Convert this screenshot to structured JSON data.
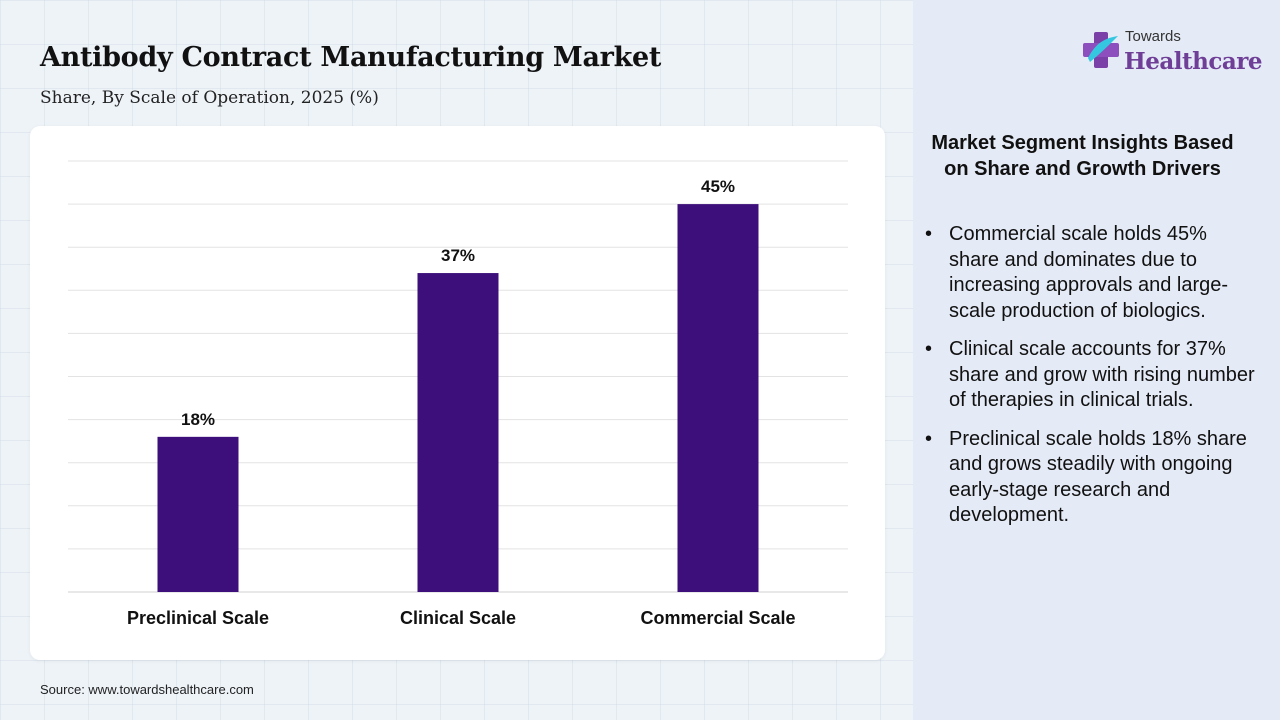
{
  "header": {
    "title": "Antibody Contract Manufacturing Market",
    "subtitle": "Share, By Scale of Operation, 2025 (%)"
  },
  "logo": {
    "top_text": "Towards",
    "main_text": "Healthcare"
  },
  "insights": {
    "title": "Market Segment Insights Based on Share and Growth Drivers",
    "items": [
      "Commercial scale holds 45% share and dominates due to increasing approvals and large-scale production of biologics.",
      "Clinical scale accounts for 37% share and grow with rising number of therapies in clinical trials.",
      "Preclinical scale holds 18% share and grows steadily with ongoing early-stage research and development."
    ]
  },
  "source": "Source: www.towardshealthcare.com",
  "colors": {
    "bar": "#3d0f7a",
    "logo_accent": "#6f3f98",
    "panel_bg": "#e4eaf6"
  },
  "chart_data": {
    "type": "bar",
    "categories": [
      "Preclinical Scale",
      "Clinical Scale",
      "Commercial Scale"
    ],
    "values": [
      18,
      37,
      45
    ],
    "data_labels": [
      "18%",
      "37%",
      "45%"
    ],
    "title": "Antibody Contract Manufacturing Market",
    "subtitle": "Share, By Scale of Operation, 2025 (%)",
    "xlabel": "",
    "ylabel": "",
    "ylim": [
      0,
      50
    ],
    "grid": true,
    "legend": "none"
  }
}
